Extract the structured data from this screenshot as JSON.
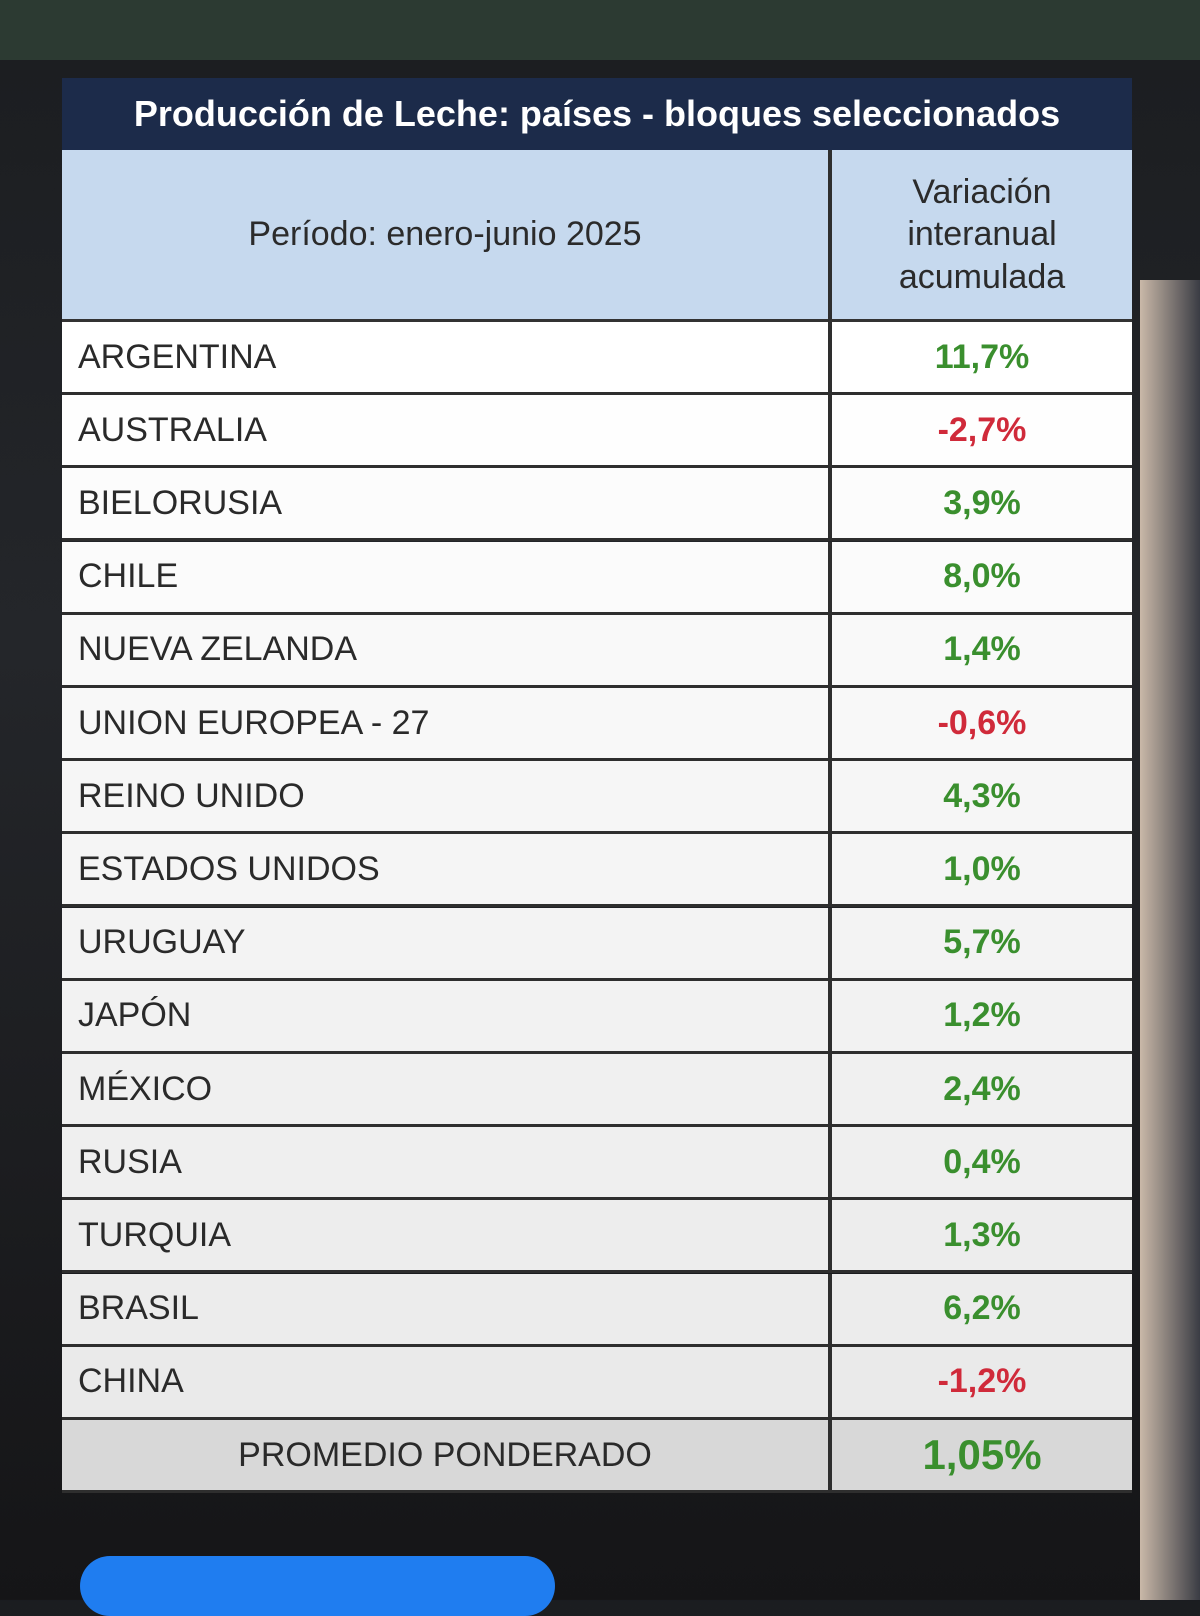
{
  "table": {
    "title": "Producción de Leche: países - bloques seleccionados",
    "header": {
      "period": "Período: enero-junio 2025",
      "variation": [
        "Variación",
        "interanual",
        "acumulada"
      ]
    },
    "rows": [
      [
        "ARGENTINA",
        "11,7%"
      ],
      [
        "AUSTRALIA",
        "-2,7%"
      ],
      [
        "BIELORUSIA",
        "3,9%"
      ],
      [
        "CHILE",
        "8,0%"
      ],
      [
        "NUEVA ZELANDA",
        "1,4%"
      ],
      [
        "UNION EUROPEA - 27",
        "-0,6%"
      ],
      [
        "REINO UNIDO",
        "4,3%"
      ],
      [
        "ESTADOS UNIDOS",
        "1,0%"
      ],
      [
        "URUGUAY",
        "5,7%"
      ],
      [
        "JAPÓN",
        "1,2%"
      ],
      [
        "MÉXICO",
        "2,4%"
      ],
      [
        "RUSIA",
        "0,4%"
      ],
      [
        "TURQUIA",
        "1,3%"
      ],
      [
        "BRASIL",
        "6,2%"
      ],
      [
        "CHINA",
        "-1,2%"
      ]
    ],
    "footer": [
      "PROMEDIO PONDERADO",
      "1,05%"
    ]
  }
}
